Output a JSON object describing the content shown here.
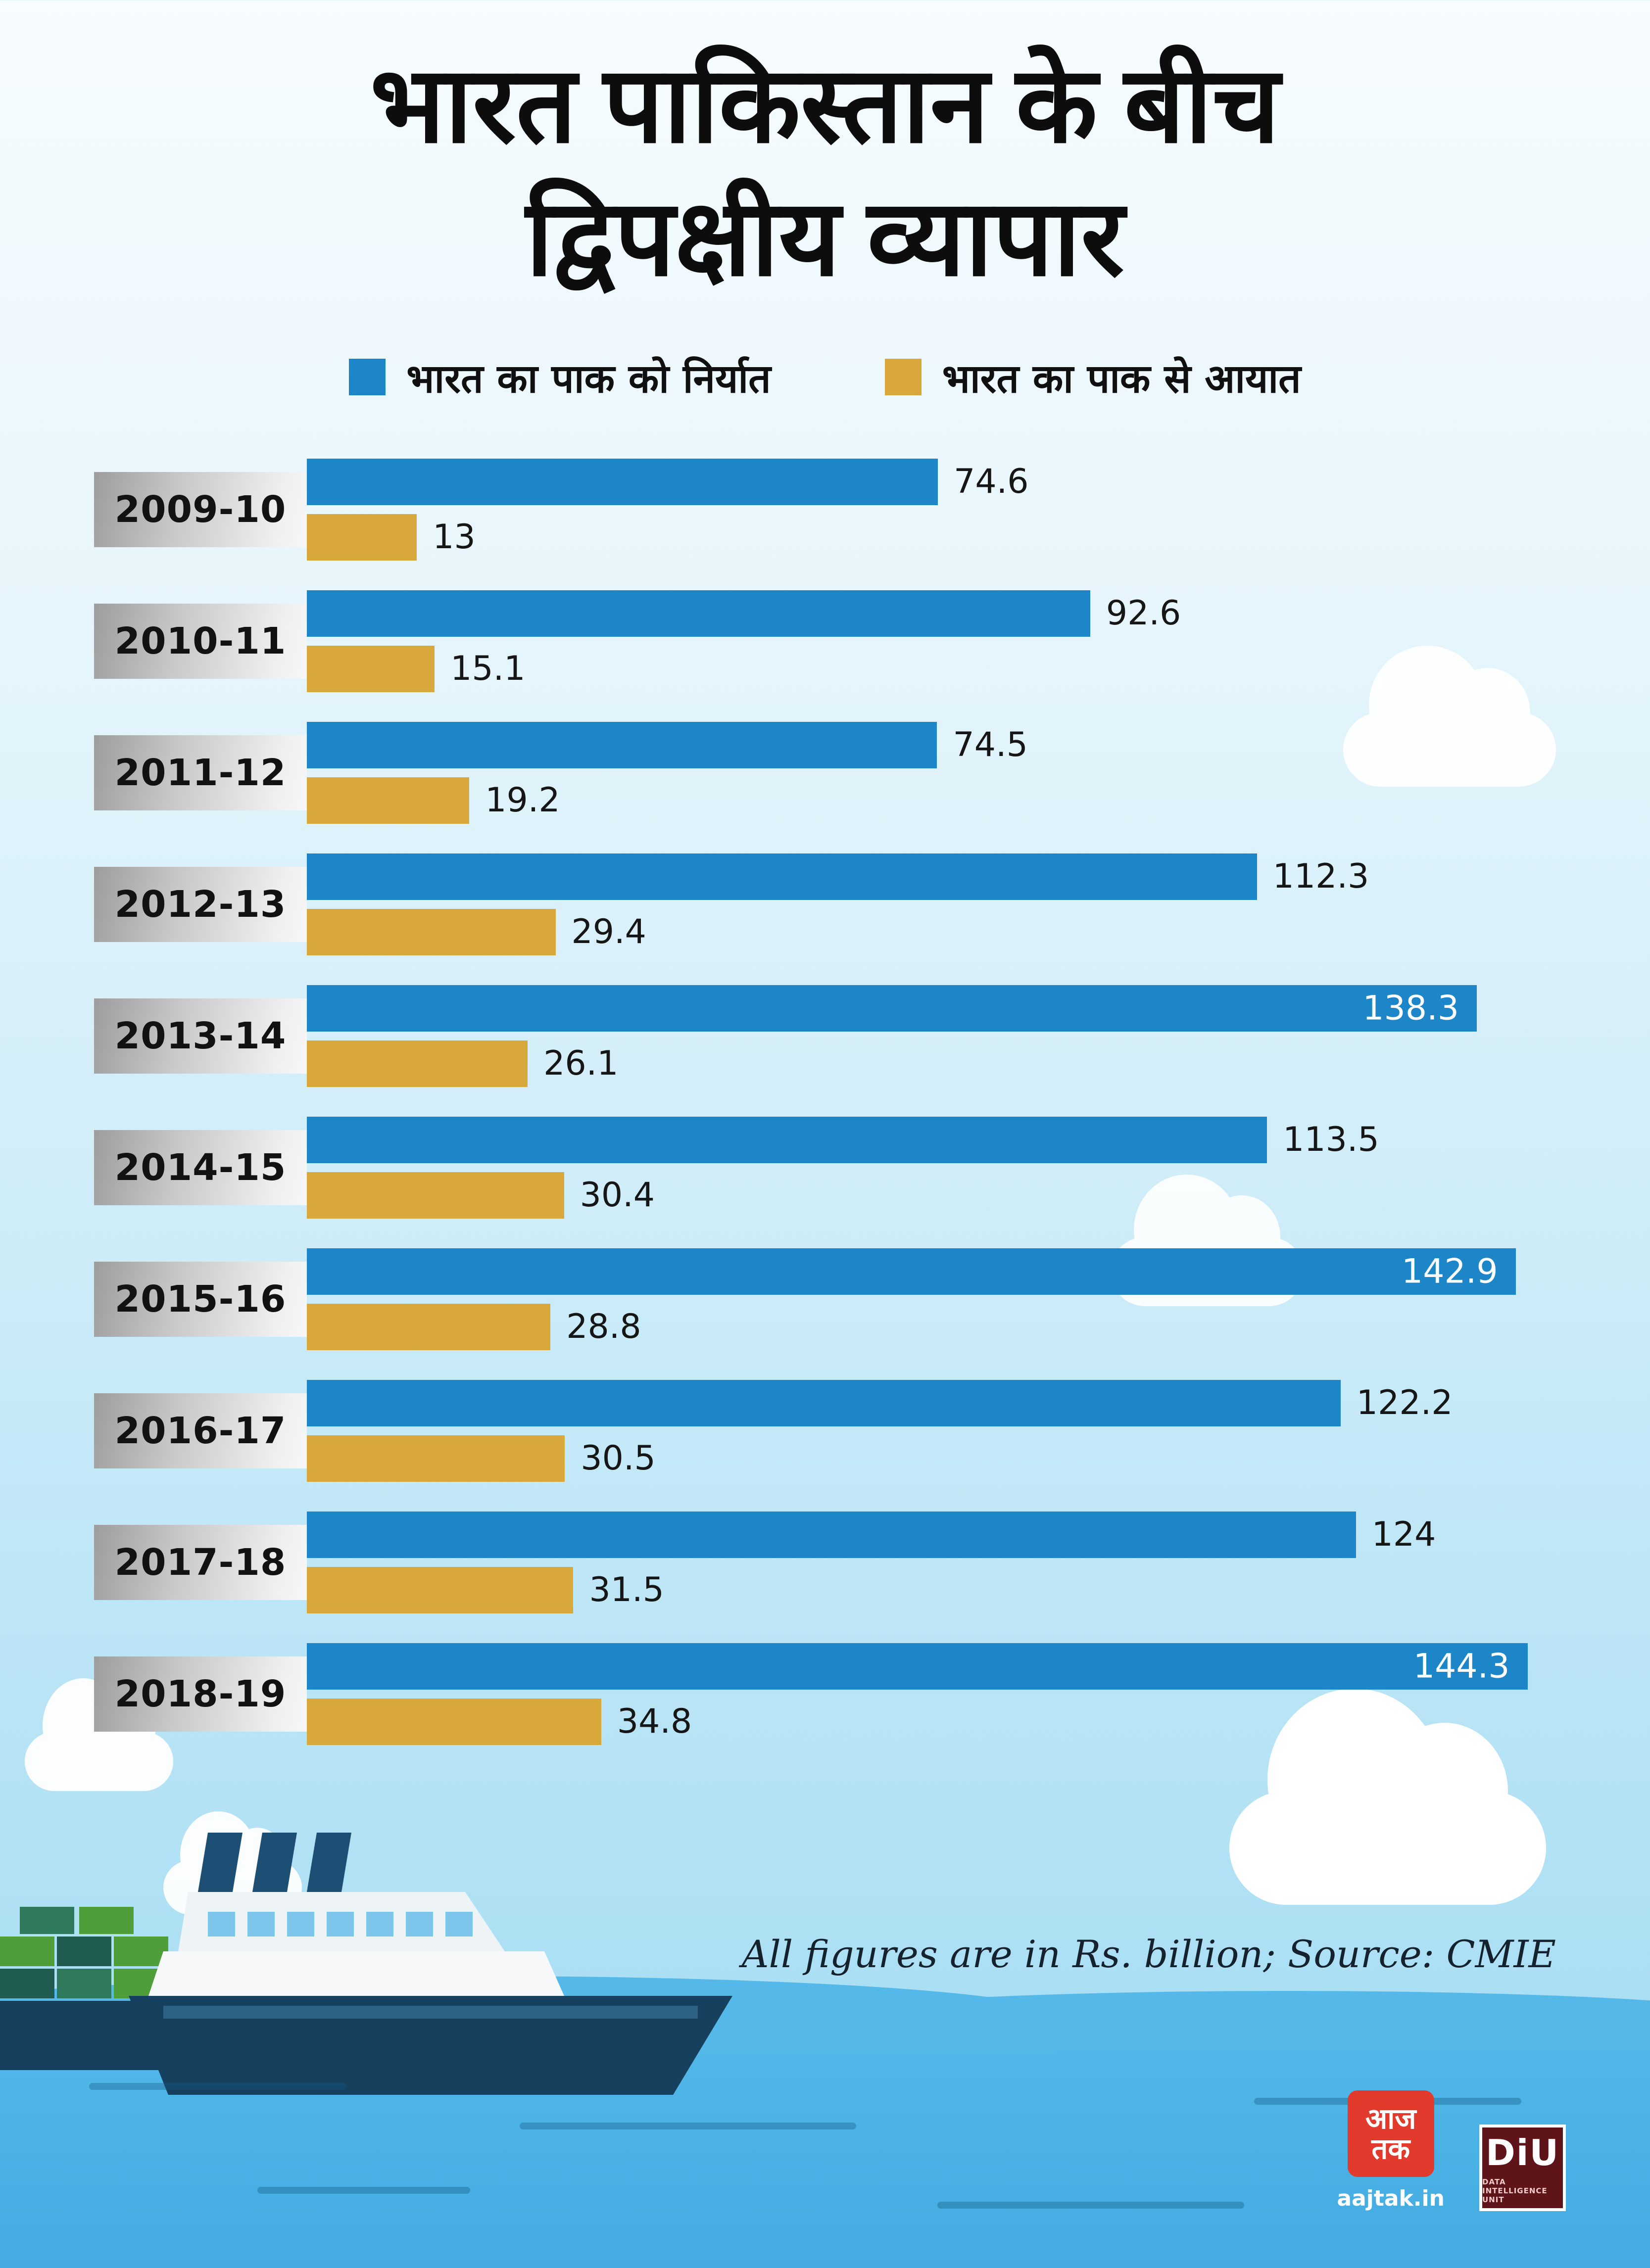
{
  "title": {
    "line1": "भारत पाकिस्तान के बीच",
    "line2": "द्विपक्षीय व्यापार"
  },
  "footnote": "All figures are in Rs. billion; Source: CMIE",
  "branding": {
    "aajtak_logo_text": "आज तक",
    "aajtak_url": "aajtak.in",
    "aajtak_color": "#e23b2e",
    "diu_text": "DiU",
    "diu_sub": "DATA INTELLIGENCE UNIT",
    "diu_color": "#5e1418"
  },
  "colors": {
    "export_bar": "#1c86c8",
    "import_bar": "#d9a83c",
    "sea": "#4cb4e7",
    "title_text": "#0d0d0d"
  },
  "chart_data": {
    "type": "bar",
    "orientation": "horizontal",
    "title": "भारत पाकिस्तान के बीच द्विपक्षीय व्यापार",
    "xlabel": "",
    "ylabel": "",
    "xlim": [
      0,
      150
    ],
    "grid": false,
    "legend_position": "top",
    "value_labels": true,
    "units": "Rs. billion",
    "categories": [
      "2009-10",
      "2010-11",
      "2011-12",
      "2012-13",
      "2013-14",
      "2014-15",
      "2015-16",
      "2016-17",
      "2017-18",
      "2018-19"
    ],
    "series": [
      {
        "name": "भारत का पाक को निर्यात",
        "color": "#1c86c8",
        "values": [
          74.6,
          92.6,
          74.5,
          112.3,
          138.3,
          113.5,
          142.9,
          122.2,
          124,
          144.3
        ]
      },
      {
        "name": "भारत का पाक से आयात",
        "color": "#d9a83c",
        "values": [
          13,
          15.1,
          19.2,
          29.4,
          26.1,
          30.4,
          28.8,
          30.5,
          31.5,
          34.8
        ]
      }
    ]
  }
}
